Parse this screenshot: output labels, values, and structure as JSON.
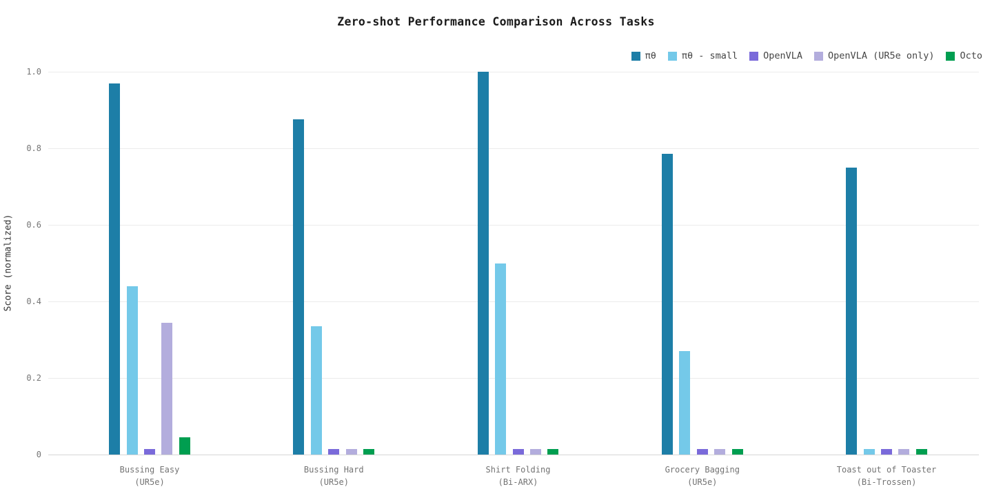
{
  "title": "Zero-shot Performance Comparison Across Tasks",
  "chart_data": {
    "type": "bar",
    "title": "Zero-shot Performance Comparison Across Tasks",
    "xlabel": "",
    "ylabel": "Score (normalized)",
    "ylim": [
      0,
      1.0
    ],
    "yticks": [
      0,
      0.2,
      0.4,
      0.6,
      0.8,
      1.0
    ],
    "grid": true,
    "legend_position": "top-right",
    "categories": [
      {
        "task": "Bussing Easy",
        "robot": "(UR5e)"
      },
      {
        "task": "Bussing Hard",
        "robot": "(UR5e)"
      },
      {
        "task": "Shirt Folding",
        "robot": "(Bi-ARX)"
      },
      {
        "task": "Grocery Bagging",
        "robot": "(UR5e)"
      },
      {
        "task": "Toast out of Toaster",
        "robot": "(Bi-Trossen)"
      }
    ],
    "series": [
      {
        "name": "πθ",
        "color": "#1d7ea7",
        "values": [
          0.97,
          0.875,
          1.0,
          0.785,
          0.75
        ]
      },
      {
        "name": "πθ - small",
        "color": "#74c9e9",
        "values": [
          0.44,
          0.335,
          0.5,
          0.27,
          0.015
        ]
      },
      {
        "name": "OpenVLA",
        "color": "#7a6ada",
        "values": [
          0.015,
          0.015,
          0.015,
          0.015,
          0.015
        ]
      },
      {
        "name": "OpenVLA (UR5e only)",
        "color": "#b3addd",
        "values": [
          0.345,
          0.015,
          0.015,
          0.015,
          0.015
        ]
      },
      {
        "name": "Octo",
        "color": "#009e50",
        "values": [
          0.045,
          0.015,
          0.015,
          0.015,
          0.015
        ]
      }
    ]
  }
}
